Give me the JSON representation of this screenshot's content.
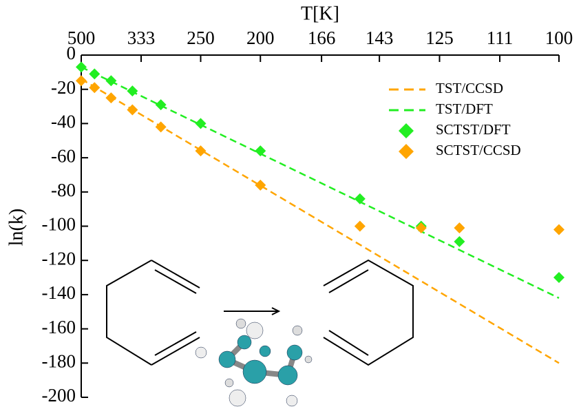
{
  "chart_data": {
    "type": "scatter-line",
    "x_axis_label": "T[K]",
    "y_axis_label": "ln(k)",
    "xscale": "reciprocal",
    "xlim": [
      500,
      100
    ],
    "xticks": [
      500,
      333,
      250,
      200,
      166,
      143,
      125,
      111,
      100
    ],
    "ylim": [
      -200,
      0
    ],
    "yticks": [
      0,
      -20,
      -40,
      -60,
      -80,
      -100,
      -120,
      -140,
      -160,
      -180,
      -200
    ],
    "legend": "upper right",
    "series": [
      {
        "name": "TST/CCSD",
        "style": "dashed",
        "color": "#ffa500",
        "x": [
          500,
          100
        ],
        "values": [
          -14,
          -180
        ]
      },
      {
        "name": "TST/DFT",
        "style": "dashed",
        "color": "#22ee22",
        "x": [
          500,
          100
        ],
        "values": [
          -7,
          -142
        ]
      },
      {
        "name": "SCTST/DFT",
        "style": "diamond",
        "color": "#22ee22",
        "x": [
          500,
          450,
          400,
          350,
          300,
          250,
          200,
          150,
          130,
          120,
          100
        ],
        "values": [
          -7,
          -11,
          -15,
          -21,
          -29,
          -40,
          -56,
          -84,
          -100,
          -109,
          -130
        ]
      },
      {
        "name": "SCTST/CCSD",
        "style": "diamond",
        "color": "#ffa500",
        "x": [
          500,
          450,
          400,
          350,
          300,
          250,
          200,
          150,
          130,
          120,
          100
        ],
        "values": [
          -15,
          -19,
          -25,
          -32,
          -42,
          -56,
          -76,
          -100,
          -101,
          -101,
          -102
        ]
      }
    ]
  }
}
